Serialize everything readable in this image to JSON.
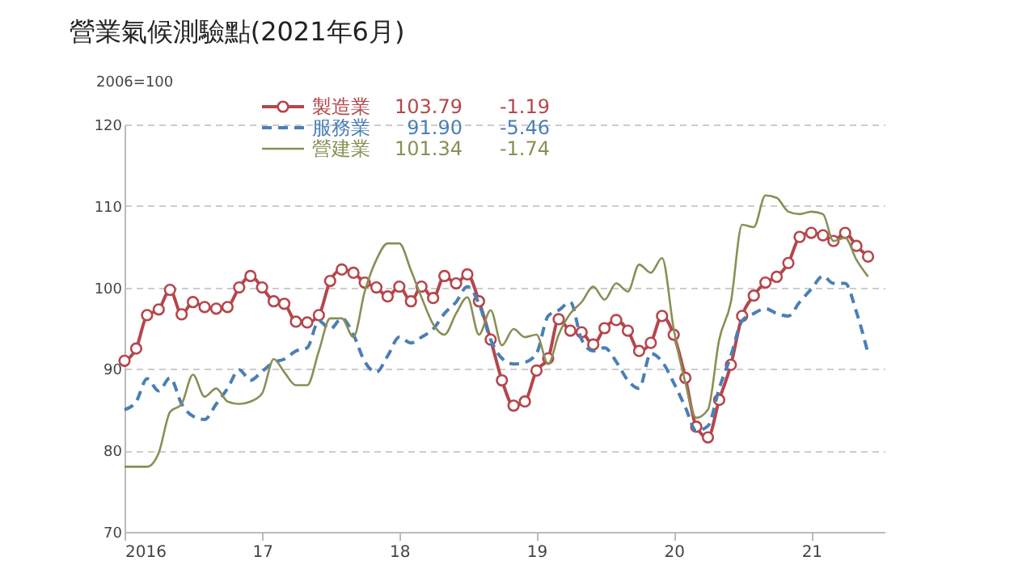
{
  "chart_data": {
    "type": "line",
    "title": "營業氣候測驗點(2021年6月)",
    "ylabel": "2006=100",
    "x": [
      "2016-01",
      "2016-02",
      "2016-03",
      "2016-04",
      "2016-05",
      "2016-06",
      "2016-07",
      "2016-08",
      "2016-09",
      "2016-10",
      "2016-11",
      "2016-12",
      "2017-01",
      "2017-02",
      "2017-03",
      "2017-04",
      "2017-05",
      "2017-06",
      "2017-07",
      "2017-08",
      "2017-09",
      "2017-10",
      "2017-11",
      "2017-12",
      "2018-01",
      "2018-02",
      "2018-03",
      "2018-04",
      "2018-05",
      "2018-06",
      "2018-07",
      "2018-08",
      "2018-09",
      "2018-10",
      "2018-11",
      "2018-12",
      "2019-01",
      "2019-02",
      "2019-03",
      "2019-04",
      "2019-05",
      "2019-06",
      "2019-07",
      "2019-08",
      "2019-09",
      "2019-10",
      "2019-11",
      "2019-12",
      "2020-01",
      "2020-02",
      "2020-03",
      "2020-04",
      "2020-05",
      "2020-06",
      "2020-07",
      "2020-08",
      "2020-09",
      "2020-10",
      "2020-11",
      "2020-12",
      "2021-01",
      "2021-02",
      "2021-03",
      "2021-04",
      "2021-05",
      "2021-06"
    ],
    "series": [
      {
        "name": "製造業",
        "color": "#b5464c",
        "marker": "circle",
        "line_style": "solid",
        "values": [
          91.0,
          92.5,
          96.6,
          97.3,
          99.7,
          96.7,
          98.2,
          97.6,
          97.4,
          97.6,
          100.0,
          101.4,
          100.0,
          98.3,
          98.0,
          95.8,
          95.7,
          96.6,
          100.8,
          102.2,
          101.8,
          100.6,
          100.0,
          98.9,
          100.1,
          98.3,
          100.1,
          98.7,
          101.4,
          100.5,
          101.6,
          98.3,
          93.6,
          88.6,
          85.5,
          86.0,
          89.8,
          91.3,
          96.1,
          94.7,
          94.5,
          93.0,
          95.0,
          96.0,
          94.7,
          92.2,
          93.2,
          96.5,
          94.2,
          88.9,
          82.9,
          81.6,
          86.2,
          90.5,
          96.5,
          99.0,
          100.6,
          101.3,
          103.0,
          106.2,
          106.7,
          106.4,
          105.7,
          106.7,
          105.1,
          103.79
        ]
      },
      {
        "name": "服務業",
        "color": "#4a7fb5",
        "marker": "none",
        "line_style": "dashed",
        "values": [
          85.0,
          86.0,
          88.8,
          87.3,
          88.9,
          85.7,
          84.2,
          83.8,
          85.7,
          87.6,
          89.9,
          88.6,
          89.7,
          90.8,
          91.2,
          92.2,
          92.6,
          95.9,
          94.9,
          96.2,
          94.2,
          90.9,
          89.6,
          91.6,
          93.9,
          93.2,
          93.9,
          94.9,
          96.8,
          98.2,
          100.1,
          98.0,
          93.6,
          91.3,
          90.6,
          90.8,
          91.9,
          96.5,
          97.2,
          98.2,
          93.6,
          92.2,
          92.6,
          90.9,
          88.6,
          87.6,
          91.9,
          90.9,
          88.3,
          85.3,
          82.4,
          83.0,
          87.6,
          91.6,
          95.9,
          96.8,
          97.4,
          96.8,
          96.5,
          98.2,
          99.8,
          101.4,
          100.5,
          100.5,
          97.0,
          91.9
        ]
      },
      {
        "name": "營建業",
        "color": "#8a8f55",
        "marker": "none",
        "line_style": "solid",
        "values": [
          78.0,
          78.0,
          78.0,
          79.7,
          84.7,
          85.7,
          89.3,
          86.6,
          87.6,
          86.0,
          85.7,
          86.0,
          87.0,
          91.2,
          89.6,
          88.0,
          88.0,
          92.2,
          96.2,
          96.2,
          93.9,
          99.5,
          103.4,
          105.4,
          105.4,
          102.1,
          98.8,
          95.5,
          94.2,
          96.8,
          98.8,
          94.2,
          97.2,
          92.9,
          94.9,
          93.9,
          94.2,
          90.6,
          94.2,
          96.8,
          98.2,
          100.1,
          98.5,
          100.5,
          99.5,
          102.8,
          101.8,
          103.6,
          94.9,
          88.3,
          84.0,
          85.0,
          93.6,
          98.2,
          107.7,
          107.4,
          111.3,
          111.0,
          109.3,
          109.0,
          109.3,
          109.0,
          105.7,
          106.1,
          103.4,
          101.34
        ]
      }
    ],
    "annotations": [
      "103.79",
      "-1.19",
      "91.90",
      "-5.46",
      "101.34",
      "-1.74"
    ],
    "xlim": [
      "2016-01",
      "2021-07-15"
    ],
    "xticks": [
      {
        "value": "2016-01",
        "label": "2016"
      },
      {
        "value": "2017-01",
        "label": "17"
      },
      {
        "value": "2018-01",
        "label": "18"
      },
      {
        "value": "2019-01",
        "label": "19"
      },
      {
        "value": "2020-01",
        "label": "20"
      },
      {
        "value": "2021-01",
        "label": "21"
      }
    ],
    "ylim": [
      70,
      120
    ],
    "yticks": [
      70,
      80,
      90,
      100,
      110,
      120
    ],
    "grid": "y",
    "legend": "top"
  }
}
